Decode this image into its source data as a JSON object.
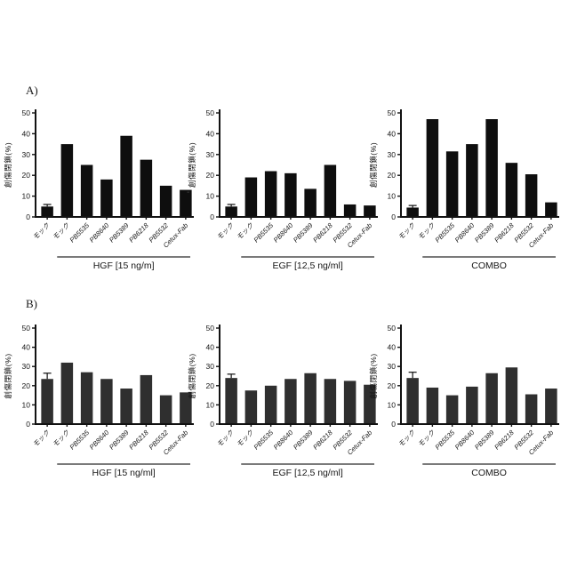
{
  "figure": {
    "background": "#ffffff",
    "axis_color": "#121212"
  },
  "panels": [
    {
      "label": "A)",
      "bar_color": "#0e0e0e"
    },
    {
      "label": "B)",
      "bar_color": "#2f2f2f"
    }
  ],
  "artifacts": {
    "dash": "-"
  },
  "chart_data": [
    {
      "id": "A-HGF",
      "panel": "A",
      "type": "bar",
      "title": "",
      "group_label": "HGF [15 ng/m]",
      "ylabel": "創傷閉鎖(%)",
      "xlabel": "",
      "ylim": [
        0,
        50
      ],
      "yticks": [
        0,
        10,
        20,
        30,
        40,
        50
      ],
      "grid": false,
      "legend": "none",
      "categories": [
        "モック",
        "モック",
        "PB5535",
        "PB8640",
        "PB5389",
        "PB6218",
        "PB5532",
        "Cetux-Fab"
      ],
      "values": [
        5,
        35,
        25,
        18,
        39,
        27.5,
        15,
        13
      ],
      "error_bars": [
        {
          "index": 0,
          "plus": 1
        }
      ],
      "bar_color": "#0e0e0e"
    },
    {
      "id": "A-EGF",
      "panel": "A",
      "type": "bar",
      "title": "",
      "group_label": "EGF [12,5 ng/ml]",
      "ylabel": "創傷閉鎖(%)",
      "xlabel": "",
      "ylim": [
        0,
        50
      ],
      "yticks": [
        0,
        10,
        20,
        30,
        40,
        50
      ],
      "grid": false,
      "legend": "none",
      "categories": [
        "モック",
        "モック",
        "PB5535",
        "PB8640",
        "PB5389",
        "PB6218",
        "PB5532",
        "Cetux-Fab"
      ],
      "values": [
        5,
        19,
        22,
        21,
        13.5,
        25,
        6,
        5.5
      ],
      "error_bars": [
        {
          "index": 0,
          "plus": 1
        }
      ],
      "bar_color": "#0e0e0e"
    },
    {
      "id": "A-COMBO",
      "panel": "A",
      "type": "bar",
      "title": "",
      "group_label": "COMBO",
      "ylabel": "創傷閉鎖(%)",
      "xlabel": "",
      "ylim": [
        0,
        50
      ],
      "yticks": [
        0,
        10,
        20,
        30,
        40,
        50
      ],
      "grid": false,
      "legend": "none",
      "categories": [
        "モック",
        "モック",
        "PB5535",
        "PB8640",
        "PB5389",
        "PB6218",
        "PB5532",
        "Cetux-Fab"
      ],
      "values": [
        4.5,
        47,
        31.5,
        35,
        47,
        26,
        20.5,
        7
      ],
      "error_bars": [
        {
          "index": 0,
          "plus": 1
        }
      ],
      "bar_color": "#0e0e0e"
    },
    {
      "id": "B-HGF",
      "panel": "B",
      "type": "bar",
      "title": "",
      "group_label": "HGF [15 ng/ml]",
      "ylabel": "創傷閉鎖(%)",
      "xlabel": "",
      "ylim": [
        0,
        50
      ],
      "yticks": [
        0,
        10,
        20,
        30,
        40,
        50
      ],
      "grid": false,
      "legend": "none",
      "categories": [
        "モック",
        "モック",
        "PB5535",
        "PB8640",
        "PB5389",
        "PB6218",
        "PB5532",
        "Cetux-Fab"
      ],
      "values": [
        23.5,
        32,
        27,
        23.5,
        18.5,
        25.5,
        15,
        16.5
      ],
      "error_bars": [
        {
          "index": 0,
          "plus": 3
        }
      ],
      "bar_color": "#2f2f2f"
    },
    {
      "id": "B-EGF",
      "panel": "B",
      "type": "bar",
      "title": "",
      "group_label": "EGF [12,5 ng/ml]",
      "ylabel": "創傷閉鎖(%)",
      "xlabel": "",
      "ylim": [
        0,
        50
      ],
      "yticks": [
        0,
        10,
        20,
        30,
        40,
        50
      ],
      "grid": false,
      "legend": "none",
      "categories": [
        "モック",
        "モック",
        "PB5535",
        "PB8640",
        "PB5389",
        "PB6218",
        "PB5532",
        "Cetux-Fab"
      ],
      "values": [
        24,
        17.5,
        20,
        23.5,
        26.5,
        23.5,
        22.5,
        20.5
      ],
      "error_bars": [
        {
          "index": 0,
          "plus": 2
        }
      ],
      "bar_color": "#2f2f2f"
    },
    {
      "id": "B-COMBO",
      "panel": "B",
      "type": "bar",
      "title": "",
      "group_label": "COMBO",
      "ylabel": "創傷閉鎖(%)",
      "xlabel": "",
      "ylim": [
        0,
        50
      ],
      "yticks": [
        0,
        10,
        20,
        30,
        40,
        50
      ],
      "grid": false,
      "legend": "none",
      "categories": [
        "モック",
        "モック",
        "PB5535",
        "PB8640",
        "PB5389",
        "PB6218",
        "PB5532",
        "Cetux-Fab"
      ],
      "values": [
        24,
        19,
        15,
        19.5,
        26.5,
        29.5,
        15.5,
        18.5
      ],
      "error_bars": [
        {
          "index": 0,
          "plus": 3
        }
      ],
      "bar_color": "#2f2f2f"
    }
  ]
}
